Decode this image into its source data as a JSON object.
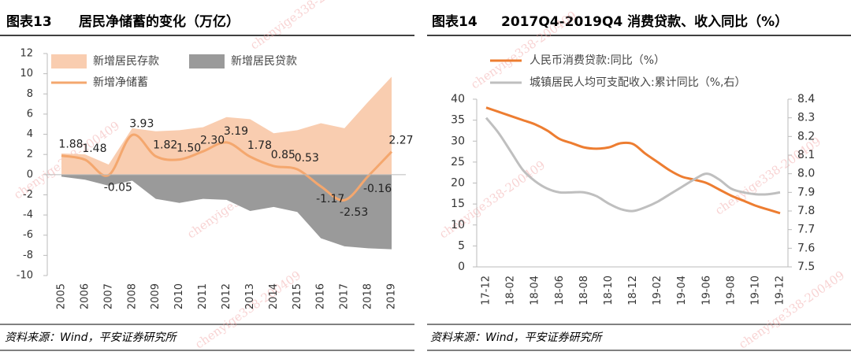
{
  "watermark": "chenyige338-200409",
  "chart_data": [
    {
      "type": "combo",
      "figure": "图表13",
      "title": "居民净储蓄的变化（万亿）",
      "source": "资料来源：Wind，平安证券研究所",
      "categories": [
        "2005",
        "2006",
        "2007",
        "2008",
        "2009",
        "2010",
        "2011",
        "2012",
        "2013",
        "2014",
        "2015",
        "2016",
        "2017",
        "2018",
        "2019"
      ],
      "series": [
        {
          "name": "新增居民存款",
          "kind": "area",
          "color": "#f9cdb0",
          "values": [
            2.1,
            2.0,
            1.0,
            4.6,
            4.3,
            4.4,
            4.7,
            5.7,
            5.5,
            4.1,
            4.4,
            5.1,
            4.6,
            7.2,
            9.7
          ]
        },
        {
          "name": "新增居民贷款",
          "kind": "area",
          "color": "#9a9a9a",
          "values": [
            -0.2,
            -0.5,
            -1.1,
            -0.6,
            -2.4,
            -2.8,
            -2.4,
            -2.5,
            -3.6,
            -3.2,
            -3.7,
            -6.3,
            -7.1,
            -7.3,
            -7.4
          ]
        },
        {
          "name": "新增净储蓄",
          "kind": "line",
          "color": "#f4a76e",
          "values": [
            1.88,
            1.48,
            -0.05,
            3.93,
            1.82,
            1.5,
            2.3,
            3.19,
            1.78,
            0.85,
            0.53,
            -1.17,
            -2.53,
            -0.16,
            2.27
          ],
          "value_labels": [
            "1.88",
            "1.48",
            "-0.05",
            "3.93",
            "1.82",
            "1.50",
            "2.30",
            "3.19",
            "1.78",
            "0.85",
            "0.53",
            "-1.17",
            "-2.53",
            "-0.16",
            "2.27"
          ]
        }
      ],
      "ylim": [
        -10,
        12
      ],
      "yticks": [
        -10,
        -8,
        -6,
        -4,
        -2,
        0,
        2,
        4,
        6,
        8,
        10,
        12
      ]
    },
    {
      "type": "line",
      "figure": "图表14",
      "title": "2017Q4-2019Q4 消费贷款、收入同比（%）",
      "source": "资料来源：Wind，平安证券研究所",
      "categories": [
        "17-12",
        null,
        "18-02",
        null,
        "18-04",
        null,
        "18-06",
        null,
        "18-08",
        null,
        "18-10",
        null,
        "18-12",
        null,
        "19-02",
        null,
        "19-04",
        null,
        "19-06",
        null,
        "19-08",
        null,
        "19-10",
        null,
        "19-12"
      ],
      "series": [
        {
          "name": "人民币消费贷款:同比（%）",
          "color": "#ed7d31",
          "values": [
            38,
            37,
            36,
            35,
            34,
            32.5,
            30.5,
            29.5,
            28.5,
            28.2,
            28.5,
            29.5,
            29.3,
            27,
            25,
            23,
            21.5,
            20.8,
            20,
            18.5,
            17,
            15.8,
            14.6,
            13.7,
            12.8
          ]
        },
        {
          "name": "城镇居民人均可支配收入:累计同比（%,右）",
          "color": "#bfbfbf",
          "axis": "y2",
          "values": [
            8.3,
            8.22,
            8.12,
            8.02,
            7.96,
            7.92,
            7.9,
            7.9,
            7.9,
            7.88,
            7.84,
            7.81,
            7.8,
            7.82,
            7.85,
            7.89,
            7.93,
            7.97,
            8.0,
            7.97,
            7.92,
            7.9,
            7.89,
            7.89,
            7.9
          ]
        }
      ],
      "ylim": [
        0,
        40
      ],
      "yticks": [
        0,
        5,
        10,
        15,
        20,
        25,
        30,
        35,
        40
      ],
      "y2lim": [
        7.5,
        8.4
      ],
      "y2ticks": [
        7.5,
        7.6,
        7.7,
        7.8,
        7.9,
        {
          "value": 8,
          "label": "8.0"
        },
        8.1,
        8.2,
        8.3,
        8.4
      ]
    }
  ]
}
